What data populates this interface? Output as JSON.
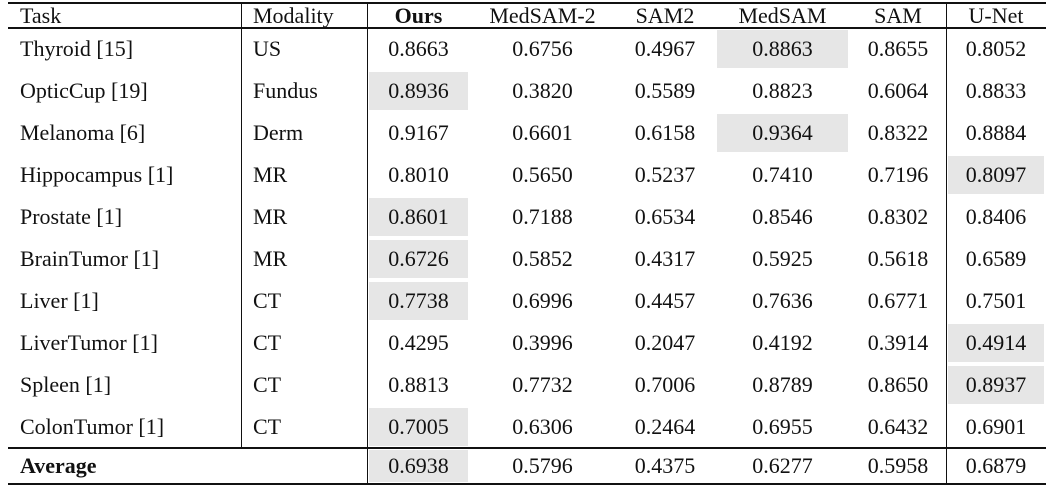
{
  "table": {
    "columns": [
      "Task",
      "Modality",
      "Ours",
      "MedSAM-2",
      "SAM2",
      "MedSAM",
      "SAM",
      "U-Net"
    ],
    "bold_column": 2,
    "rows": [
      {
        "task": "Thyroid [15]",
        "modality": "US",
        "scores": [
          "0.8663",
          "0.6756",
          "0.4967",
          "0.8863",
          "0.8655",
          "0.8052"
        ],
        "best": 3
      },
      {
        "task": "OpticCup [19]",
        "modality": "Fundus",
        "scores": [
          "0.8936",
          "0.3820",
          "0.5589",
          "0.8823",
          "0.6064",
          "0.8833"
        ],
        "best": 0
      },
      {
        "task": "Melanoma [6]",
        "modality": "Derm",
        "scores": [
          "0.9167",
          "0.6601",
          "0.6158",
          "0.9364",
          "0.8322",
          "0.8884"
        ],
        "best": 3
      },
      {
        "task": "Hippocampus [1]",
        "modality": "MR",
        "scores": [
          "0.8010",
          "0.5650",
          "0.5237",
          "0.7410",
          "0.7196",
          "0.8097"
        ],
        "best": 5
      },
      {
        "task": "Prostate [1]",
        "modality": "MR",
        "scores": [
          "0.8601",
          "0.7188",
          "0.6534",
          "0.8546",
          "0.8302",
          "0.8406"
        ],
        "best": 0
      },
      {
        "task": "BrainTumor [1]",
        "modality": "MR",
        "scores": [
          "0.6726",
          "0.5852",
          "0.4317",
          "0.5925",
          "0.5618",
          "0.6589"
        ],
        "best": 0
      },
      {
        "task": "Liver [1]",
        "modality": "CT",
        "scores": [
          "0.7738",
          "0.6996",
          "0.4457",
          "0.7636",
          "0.6771",
          "0.7501"
        ],
        "best": 0
      },
      {
        "task": "LiverTumor [1]",
        "modality": "CT",
        "scores": [
          "0.4295",
          "0.3996",
          "0.2047",
          "0.4192",
          "0.3914",
          "0.4914"
        ],
        "best": 5
      },
      {
        "task": "Spleen [1]",
        "modality": "CT",
        "scores": [
          "0.8813",
          "0.7732",
          "0.7006",
          "0.8789",
          "0.8650",
          "0.8937"
        ],
        "best": 5
      },
      {
        "task": "ColonTumor [1]",
        "modality": "CT",
        "scores": [
          "0.7005",
          "0.6306",
          "0.2464",
          "0.6955",
          "0.6432",
          "0.6901"
        ],
        "best": 0
      }
    ],
    "average": {
      "label": "Average",
      "scores": [
        "0.6938",
        "0.5796",
        "0.4375",
        "0.6277",
        "0.5958",
        "0.6879"
      ],
      "best": 0
    }
  }
}
